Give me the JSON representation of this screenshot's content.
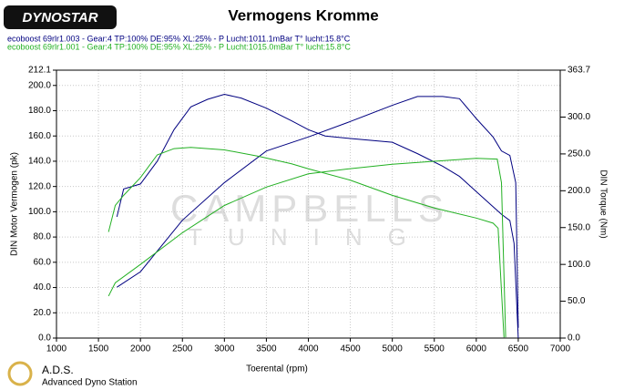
{
  "chart_data": {
    "type": "line",
    "title": "Vermogens Kromme",
    "logo": "DYNOSTAR",
    "xlabel": "Toerental (rpm)",
    "ylabel": "DIN Motor Vermogen (pk)",
    "y2label": "DIN Torque (Nm)",
    "watermark": [
      "CAMPBELLS",
      "TUNING"
    ],
    "footer": [
      "A.D.S.",
      "Advanced Dyno Station"
    ],
    "xlim": [
      1000,
      7000
    ],
    "xticks": [
      1000,
      1500,
      2000,
      2500,
      3000,
      3500,
      4000,
      4500,
      5000,
      5500,
      6000,
      6500,
      7000
    ],
    "ylim": [
      0,
      212.1
    ],
    "yticks": [
      {
        "value": 0,
        "label": "0.0"
      },
      {
        "value": 20,
        "label": "20.0"
      },
      {
        "value": 40,
        "label": "40.0"
      },
      {
        "value": 60,
        "label": "60.0"
      },
      {
        "value": 80,
        "label": "80.0"
      },
      {
        "value": 100,
        "label": "100.0"
      },
      {
        "value": 120,
        "label": "120.0"
      },
      {
        "value": 140,
        "label": "140.0"
      },
      {
        "value": 160,
        "label": "160.0"
      },
      {
        "value": 180,
        "label": "180.0"
      },
      {
        "value": 200,
        "label": "200.0"
      },
      212.1
    ],
    "y2lim": [
      0,
      363.7
    ],
    "y2ticks": [
      {
        "value": 0,
        "label": "0.0"
      },
      {
        "value": 50,
        "label": "50.0"
      },
      {
        "value": 100,
        "label": "100.0"
      },
      {
        "value": 150,
        "label": "150.0"
      },
      {
        "value": 200,
        "label": "200.0"
      },
      {
        "value": 250,
        "label": "250.0"
      },
      {
        "value": 300,
        "label": "300.0"
      },
      363.7
    ],
    "grid": true,
    "series": [
      {
        "name": "ecoboost 69rlr1.003 - Gear:4 TP:100% DE:95% XL:25%   - P Lucht:1011.1mBar T° lucht:15.8°C",
        "color": "#000080",
        "x": [
          1720,
          1800,
          2000,
          2200,
          2400,
          2600,
          2800,
          3000,
          3200,
          3500,
          3800,
          4000,
          4200,
          4500,
          5000,
          5300,
          5600,
          5800,
          6000,
          6200,
          6300,
          6400,
          6450,
          6500
        ],
        "values": [
          96,
          118,
          122,
          140,
          165,
          183,
          189,
          193,
          190,
          182,
          172,
          165,
          160,
          158,
          155,
          146,
          136,
          128,
          116,
          104,
          98,
          93,
          75,
          0
        ]
      },
      {
        "color": "#000080",
        "axis": "y2",
        "x": [
          1720,
          2000,
          2500,
          3000,
          3500,
          4000,
          4500,
          5000,
          5300,
          5600,
          5800,
          6000,
          6200,
          6300,
          6400,
          6470,
          6500
        ],
        "values": [
          69,
          90,
          160,
          211,
          254,
          273,
          294,
          316,
          328,
          328,
          325,
          298,
          273,
          254,
          248,
          211,
          14
        ]
      },
      {
        "name": "ecoboost 69rlr1.001 - Gear:4 TP:100% DE:95% XL:25%   - P Lucht:1015.0mBar T° lucht:15.8°C",
        "color": "#22b022",
        "x": [
          1620,
          1700,
          1800,
          2000,
          2200,
          2400,
          2600,
          3000,
          3400,
          3800,
          4000,
          4500,
          5000,
          5500,
          6000,
          6200,
          6260,
          6330
        ],
        "values": [
          84,
          105,
          113,
          127,
          145,
          150,
          151,
          149,
          144,
          138,
          134,
          125,
          113,
          103,
          95,
          91,
          87,
          0.5
        ]
      },
      {
        "color": "#22b022",
        "axis": "y2",
        "x": [
          1620,
          1700,
          2000,
          2500,
          3000,
          3500,
          4000,
          4500,
          5000,
          5500,
          6000,
          6250,
          6300,
          6350
        ],
        "values": [
          57,
          75,
          100,
          143,
          180,
          205,
          223,
          230,
          236,
          240,
          244,
          243,
          211,
          1
        ]
      }
    ]
  }
}
